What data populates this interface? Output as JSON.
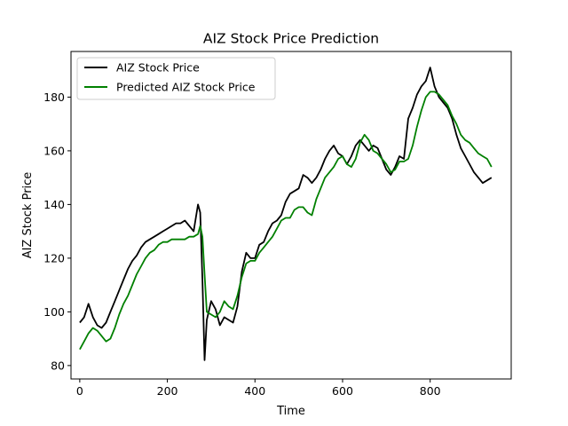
{
  "chart_data": {
    "type": "line",
    "title": "AIZ Stock Price Prediction",
    "xlabel": "Time",
    "ylabel": "AIZ Stock Price",
    "xlim": [
      -20,
      985
    ],
    "ylim": [
      75,
      197
    ],
    "xticks": [
      0,
      200,
      400,
      600,
      800
    ],
    "yticks": [
      80,
      100,
      120,
      140,
      160,
      180
    ],
    "grid": false,
    "legend_position": "top-left",
    "series": [
      {
        "name": "AIZ Stock Price",
        "color": "#000000",
        "x": [
          0,
          10,
          20,
          30,
          40,
          50,
          60,
          70,
          80,
          90,
          100,
          110,
          120,
          130,
          140,
          150,
          160,
          170,
          180,
          190,
          200,
          210,
          220,
          230,
          240,
          250,
          260,
          270,
          275,
          280,
          285,
          290,
          300,
          310,
          320,
          330,
          340,
          350,
          360,
          370,
          380,
          390,
          400,
          410,
          420,
          430,
          440,
          450,
          460,
          470,
          480,
          490,
          500,
          510,
          520,
          530,
          540,
          550,
          560,
          570,
          580,
          590,
          600,
          610,
          620,
          630,
          640,
          650,
          660,
          670,
          680,
          690,
          700,
          710,
          720,
          730,
          740,
          750,
          760,
          770,
          780,
          790,
          800,
          810,
          820,
          830,
          840,
          850,
          860,
          870,
          880,
          890,
          900,
          910,
          920,
          930,
          940
        ],
        "y": [
          96,
          98,
          103,
          98,
          95,
          94,
          96,
          100,
          104,
          108,
          112,
          116,
          119,
          121,
          124,
          126,
          127,
          128,
          129,
          130,
          131,
          132,
          133,
          133,
          134,
          132,
          130,
          140,
          137,
          112,
          82,
          97,
          104,
          101,
          95,
          98,
          97,
          96,
          102,
          115,
          122,
          120,
          120,
          125,
          126,
          130,
          133,
          134,
          136,
          141,
          144,
          145,
          146,
          151,
          150,
          148,
          150,
          153,
          157,
          160,
          162,
          159,
          158,
          155,
          158,
          162,
          164,
          162,
          160,
          162,
          161,
          157,
          153,
          151,
          154,
          158,
          157,
          172,
          176,
          181,
          184,
          186,
          191,
          184,
          180,
          178,
          176,
          172,
          166,
          161,
          158,
          155,
          152,
          150,
          148,
          149,
          150
        ]
      },
      {
        "name": "Predicted AIZ Stock Price",
        "color": "#008000",
        "x": [
          0,
          10,
          20,
          30,
          40,
          50,
          60,
          70,
          80,
          90,
          100,
          110,
          120,
          130,
          140,
          150,
          160,
          170,
          180,
          190,
          200,
          210,
          220,
          230,
          240,
          250,
          260,
          270,
          275,
          280,
          285,
          290,
          300,
          310,
          320,
          330,
          340,
          350,
          360,
          370,
          380,
          390,
          400,
          410,
          420,
          430,
          440,
          450,
          460,
          470,
          480,
          490,
          500,
          510,
          520,
          530,
          540,
          550,
          560,
          570,
          580,
          590,
          600,
          610,
          620,
          630,
          640,
          650,
          660,
          670,
          680,
          690,
          700,
          710,
          720,
          730,
          740,
          750,
          760,
          770,
          780,
          790,
          800,
          810,
          820,
          830,
          840,
          850,
          860,
          870,
          880,
          890,
          900,
          910,
          920,
          930,
          940
        ],
        "y": [
          86,
          89,
          92,
          94,
          93,
          91,
          89,
          90,
          94,
          99,
          103,
          106,
          110,
          114,
          117,
          120,
          122,
          123,
          125,
          126,
          126,
          127,
          127,
          127,
          127,
          128,
          128,
          129,
          132,
          128,
          114,
          100,
          99,
          98,
          100,
          104,
          102,
          101,
          106,
          113,
          118,
          119,
          119,
          122,
          124,
          126,
          128,
          131,
          134,
          135,
          135,
          138,
          139,
          139,
          137,
          136,
          142,
          146,
          150,
          152,
          154,
          157,
          158,
          155,
          154,
          157,
          163,
          166,
          164,
          160,
          159,
          157,
          155,
          152,
          153,
          156,
          156,
          157,
          162,
          169,
          175,
          180,
          182,
          182,
          181,
          179,
          177,
          173,
          170,
          166,
          164,
          163,
          161,
          159,
          158,
          157,
          154
        ]
      }
    ]
  }
}
